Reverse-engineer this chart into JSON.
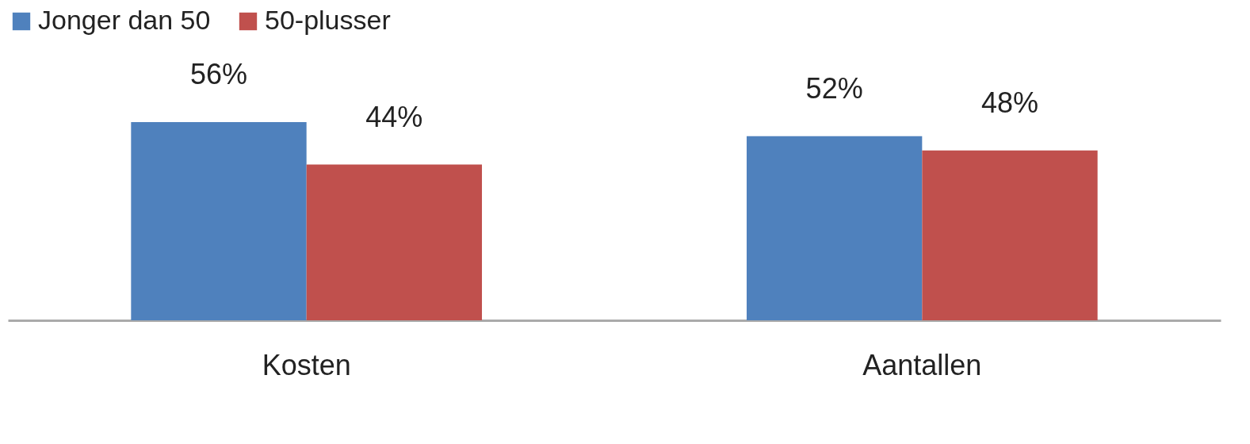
{
  "chart_data": {
    "type": "bar",
    "categories": [
      "Kosten",
      "Aantallen"
    ],
    "series": [
      {
        "name": "Jonger dan 50",
        "color": "#4f81bd",
        "values": [
          56,
          52
        ],
        "value_labels": [
          "56%",
          "52%"
        ]
      },
      {
        "name": "50-plusser",
        "color": "#c0504d",
        "values": [
          44,
          48
        ],
        "value_labels": [
          "44%",
          "48%"
        ]
      }
    ],
    "legend": "top",
    "grid": false
  }
}
